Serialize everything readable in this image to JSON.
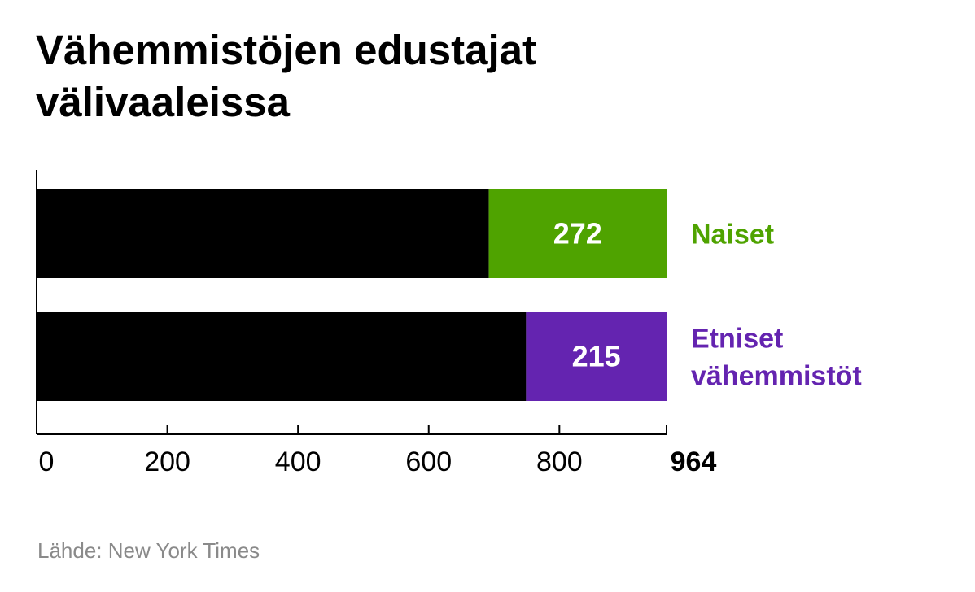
{
  "title_lines": [
    "Vähemmistöjen edustajat",
    "välivaaleissa"
  ],
  "source": "Lähde: New York Times",
  "colors": {
    "base": "#000000",
    "naiset": "#4fa300",
    "etniset": "#6424b0",
    "axis": "#000000",
    "source": "#8a8a8a"
  },
  "chart_data": {
    "type": "bar",
    "orientation": "horizontal",
    "stacked": true,
    "title": "Vähemmistöjen edustajat välivaaleissa",
    "xlim": [
      0,
      964
    ],
    "xticks": [
      0,
      200,
      400,
      600,
      800
    ],
    "xticks_labels": [
      "0",
      "200",
      "400",
      "600",
      "800"
    ],
    "end_label": "964",
    "grid": false,
    "legend": "inline-right",
    "bars": [
      {
        "name": "Naiset",
        "label_lines": [
          "Naiset"
        ],
        "total": 964,
        "highlight": 272,
        "color": "#4fa300"
      },
      {
        "name": "Etniset vähemmistöt",
        "label_lines": [
          "Etniset",
          "vähemmistöt"
        ],
        "total": 964,
        "highlight": 215,
        "color": "#6424b0"
      }
    ]
  }
}
